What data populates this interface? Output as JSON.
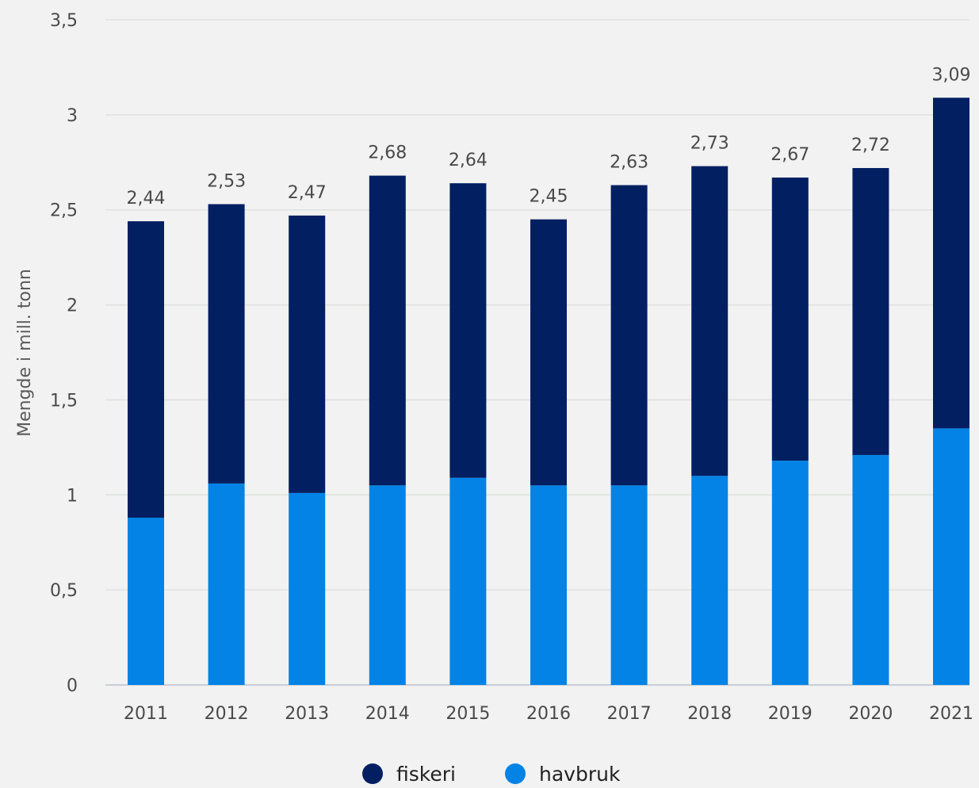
{
  "chart_data": {
    "type": "bar",
    "stacked": true,
    "categories": [
      "2011",
      "2012",
      "2013",
      "2014",
      "2015",
      "2016",
      "2017",
      "2018",
      "2019",
      "2020",
      "2021"
    ],
    "series": [
      {
        "name": "havbruk",
        "color": "#0383e6",
        "values": [
          0.88,
          1.06,
          1.01,
          1.05,
          1.09,
          1.05,
          1.05,
          1.1,
          1.18,
          1.21,
          1.35
        ]
      },
      {
        "name": "fiskeri",
        "color": "#021f62",
        "values": [
          1.56,
          1.47,
          1.46,
          1.63,
          1.55,
          1.4,
          1.58,
          1.63,
          1.49,
          1.51,
          1.74
        ]
      }
    ],
    "totals_labels": [
      "2,44",
      "2,53",
      "2,47",
      "2,68",
      "2,64",
      "2,45",
      "2,63",
      "2,73",
      "2,67",
      "2,72",
      "3,09"
    ],
    "y_ticks": [
      0,
      0.5,
      1,
      1.5,
      2,
      2.5,
      3,
      3.5
    ],
    "y_tick_labels": [
      "0",
      "0,5",
      "1",
      "1,5",
      "2",
      "2,5",
      "3",
      "3,5"
    ],
    "ylim": [
      0,
      3.5
    ],
    "ylabel": "Mengde i mill. tonn",
    "xlabel": "",
    "grid": true,
    "legend": {
      "position": "bottom-center",
      "items": [
        {
          "name": "fiskeri",
          "color": "#021f62"
        },
        {
          "name": "havbruk",
          "color": "#0383e6"
        }
      ]
    }
  }
}
